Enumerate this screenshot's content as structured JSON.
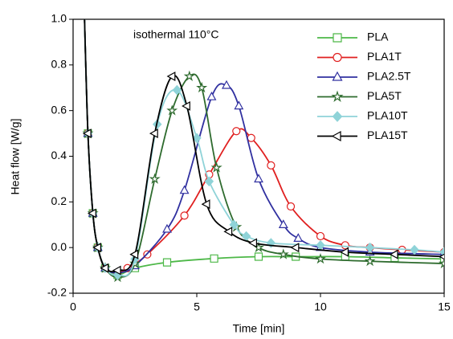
{
  "chart_data": {
    "type": "line",
    "annotation": "isothermal 110°C",
    "x_label": "Time [min]",
    "y_label": "Heat flow [W/g]",
    "xlim": [
      0,
      15
    ],
    "xticks": [
      0,
      5,
      10,
      15
    ],
    "ylim": [
      -0.2,
      1.0
    ],
    "yticks": [
      -0.2,
      {
        "value": 0,
        "label": "0.0"
      },
      0.2,
      0.4,
      0.6,
      0.8,
      {
        "value": 1,
        "label": "1.0"
      }
    ],
    "legend": "upper right",
    "series": [
      {
        "name": "PLA",
        "color": "#4db848",
        "marker": "square",
        "filled": false,
        "x": [
          0.45,
          0.6,
          0.8,
          1.0,
          1.3,
          1.8,
          2.5,
          3.8,
          5.7,
          7.5,
          9,
          11,
          13,
          15
        ],
        "values": [
          1.05,
          0.5,
          0.15,
          0,
          -0.09,
          -0.12,
          -0.09,
          -0.065,
          -0.048,
          -0.04,
          -0.04,
          -0.04,
          -0.045,
          -0.05
        ]
      },
      {
        "name": "PLA1T",
        "color": "#e02020",
        "marker": "circle",
        "filled": false,
        "x": [
          0.45,
          0.6,
          0.8,
          1.0,
          1.3,
          1.8,
          2.2,
          3,
          4.5,
          5.5,
          6.6,
          7.2,
          8,
          8.8,
          10,
          11,
          12,
          13.3,
          15
        ],
        "values": [
          1.05,
          0.5,
          0.15,
          0,
          -0.09,
          -0.11,
          -0.09,
          -0.03,
          0.14,
          0.32,
          0.51,
          0.48,
          0.36,
          0.18,
          0.05,
          0.01,
          0,
          -0.01,
          -0.02
        ]
      },
      {
        "name": "PLA2.5T",
        "color": "#3030a0",
        "marker": "triangle",
        "filled": false,
        "x": [
          0.45,
          0.6,
          0.8,
          1.0,
          1.3,
          1.8,
          2.5,
          3.8,
          4.5,
          5.6,
          6.2,
          6.7,
          7.5,
          8.5,
          9.1,
          10,
          12,
          15
        ],
        "values": [
          1.05,
          0.5,
          0.15,
          0,
          -0.09,
          -0.11,
          -0.08,
          0.08,
          0.25,
          0.66,
          0.71,
          0.62,
          0.3,
          0.1,
          0.04,
          0,
          -0.02,
          -0.03
        ]
      },
      {
        "name": "PLA5T",
        "color": "#2e6b2e",
        "marker": "star",
        "filled": false,
        "x": [
          0.45,
          0.6,
          0.8,
          1.0,
          1.3,
          1.8,
          2.5,
          3.3,
          4,
          4.7,
          5.2,
          5.8,
          6.6,
          7.5,
          8.5,
          10,
          12,
          15
        ],
        "values": [
          1.05,
          0.5,
          0.15,
          0,
          -0.09,
          -0.13,
          -0.07,
          0.3,
          0.6,
          0.75,
          0.7,
          0.35,
          0.09,
          0,
          -0.03,
          -0.05,
          -0.06,
          -0.07
        ]
      },
      {
        "name": "PLA10T",
        "color": "#8fd3d8",
        "marker": "diamond",
        "filled": true,
        "x": [
          0.45,
          0.6,
          0.8,
          1.0,
          1.3,
          1.8,
          2.5,
          3.4,
          4.2,
          5,
          5.5,
          6.5,
          7,
          8,
          10,
          12,
          13.8,
          15
        ],
        "values": [
          1.05,
          0.5,
          0.15,
          0,
          -0.09,
          -0.12,
          -0.05,
          0.54,
          0.69,
          0.48,
          0.29,
          0.1,
          0.05,
          0.02,
          0.01,
          0,
          -0.01,
          -0.02
        ]
      },
      {
        "name": "PLA15T",
        "color": "#000000",
        "marker": "triangle-left",
        "filled": false,
        "x": [
          0.45,
          0.6,
          0.8,
          1.0,
          1.3,
          1.8,
          2.5,
          3.3,
          4,
          4.6,
          5.4,
          6.3,
          7.3,
          9,
          11,
          13,
          15
        ],
        "values": [
          1.05,
          0.5,
          0.15,
          0,
          -0.09,
          -0.1,
          -0.03,
          0.5,
          0.75,
          0.62,
          0.19,
          0.07,
          0.02,
          0,
          -0.02,
          -0.03,
          -0.04
        ]
      }
    ]
  }
}
